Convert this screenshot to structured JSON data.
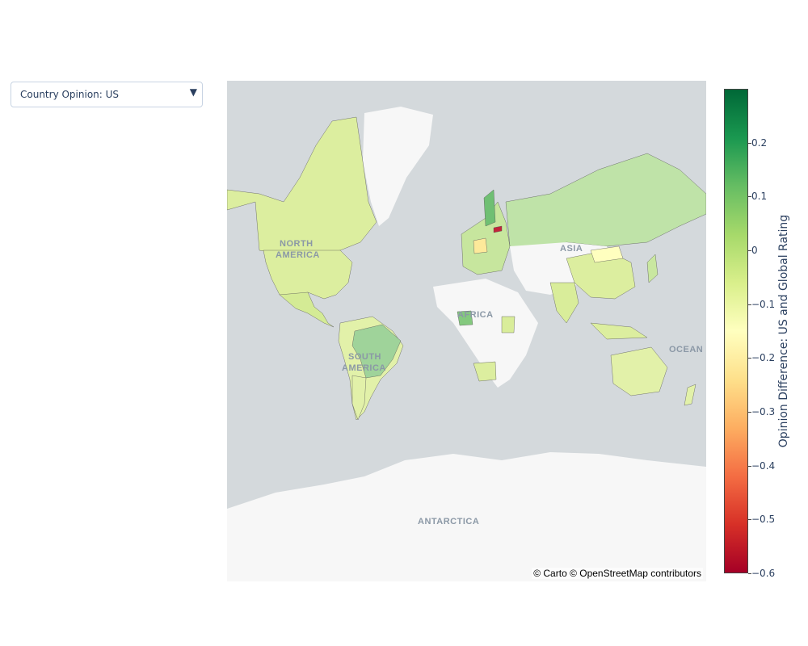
{
  "dropdown": {
    "label": "Country Opinion: US",
    "arrow": "▼"
  },
  "map": {
    "attribution": "© Carto © OpenStreetMap contributors",
    "labels": {
      "north_america_1": "NORTH",
      "north_america_2": "AMERICA",
      "south_america_1": "SOUTH",
      "south_america_2": "AMERICA",
      "africa": "AFRICA",
      "asia": "ASIA",
      "oceania": "OCEAN",
      "antarctica": "ANTARCTICA"
    },
    "colors": {
      "ocean": "#d4d9dc",
      "land": "#f7f7f7"
    }
  },
  "colorbar": {
    "title": "Opinion Difference: US and Global Rating",
    "range": [
      -0.6,
      0.3
    ],
    "ticks": [
      "0.2",
      "0.1",
      "0",
      "−0.1",
      "−0.2",
      "−0.3",
      "−0.4",
      "−0.5",
      "−0.6"
    ],
    "tick_values": [
      0.2,
      0.1,
      0,
      -0.1,
      -0.2,
      -0.3,
      -0.4,
      -0.5,
      -0.6
    ],
    "colorscale": [
      "#a50026",
      "#d73027",
      "#f46d43",
      "#fdae61",
      "#fee08b",
      "#ffffbf",
      "#d9ef8b",
      "#a6d96a",
      "#66bd63",
      "#1a9850",
      "#006837"
    ]
  },
  "chart_data": {
    "type": "choropleth",
    "title": "",
    "values_by_country": {
      "United States": -0.08,
      "Canada": -0.05,
      "Mexico": -0.06,
      "Brazil": 0.12,
      "Argentina": -0.02,
      "Chile": -0.04,
      "Peru": -0.03,
      "Colombia": -0.05,
      "Venezuela": -0.02,
      "Russia": 0.07,
      "China": -0.06,
      "India": -0.04,
      "Australia": -0.08,
      "Nigeria": 0.13,
      "Kenya": -0.03,
      "South Africa": -0.05,
      "Germany": -0.22,
      "Poland": -0.12,
      "Finland": 0.16,
      "Sweden": 0.08,
      "Norway": 0.04,
      "Estonia": -0.55,
      "Turkey": 0.02,
      "Japan": 0.01,
      "Philippines": 0.04,
      "Indonesia": -0.04,
      "Mongolia": -0.15,
      "Italy": 0.05,
      "Spain": 0.06
    }
  }
}
